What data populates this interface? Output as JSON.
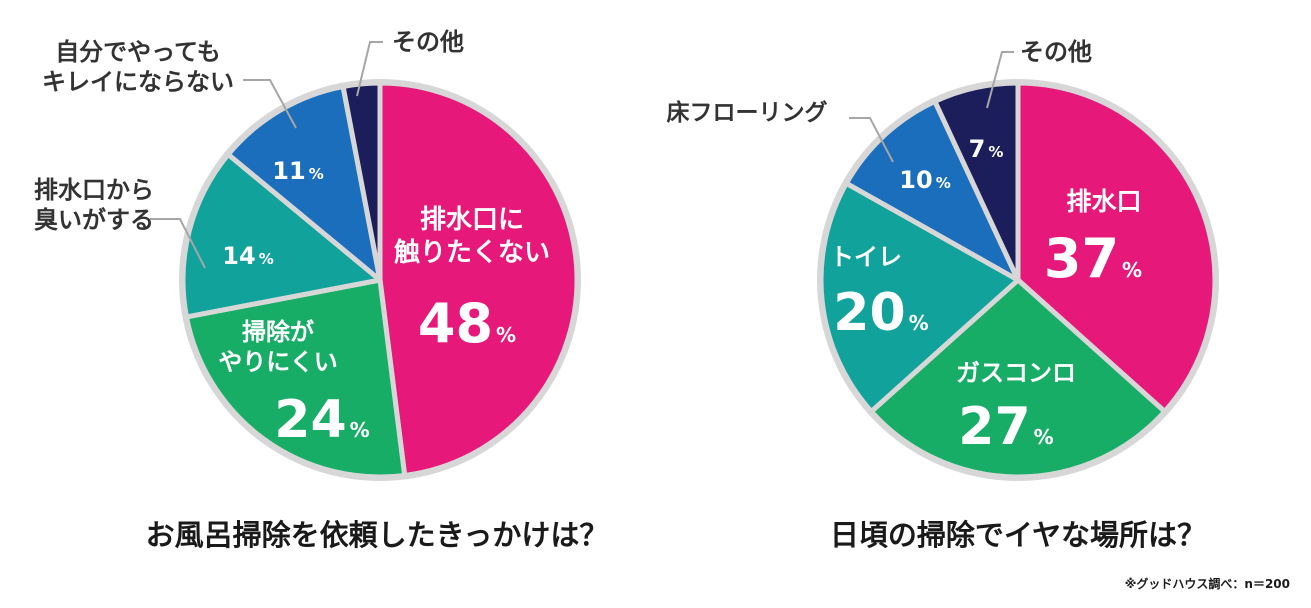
{
  "colors": {
    "magenta": "#e6197b",
    "green": "#17ad66",
    "teal": "#11a29c",
    "blue": "#1a6ebc",
    "navy": "#1c1e5c",
    "ring": "#d7d7d7",
    "leader": "#a6a6a6"
  },
  "chart_data": [
    {
      "type": "pie",
      "title": "お風呂掃除を依頼したきっかけは？",
      "unit": "%",
      "slices": [
        {
          "name": "排水口に触りたくない",
          "lines": [
            "排水口に",
            "触りたくない"
          ],
          "value": 48,
          "color": "#e6197b"
        },
        {
          "name": "掃除がやりにくい",
          "lines": [
            "掃除が",
            "やりにくい"
          ],
          "value": 24,
          "color": "#17ad66"
        },
        {
          "name": "排水口から臭いがする",
          "lines": [
            "排水口から",
            "臭いがする"
          ],
          "value": 14,
          "color": "#11a29c"
        },
        {
          "name": "自分でやってもキレイにならない",
          "lines": [
            "自分でやっても",
            "キレイにならない"
          ],
          "value": 11,
          "color": "#1a6ebc"
        },
        {
          "name": "その他",
          "lines": [
            "その他"
          ],
          "value": 3,
          "color": "#1c1e5c"
        }
      ]
    },
    {
      "type": "pie",
      "title": "日頃の掃除でイヤな場所は？",
      "unit": "%",
      "slices": [
        {
          "name": "排水口",
          "lines": [
            "排水口"
          ],
          "value": 37,
          "color": "#e6197b"
        },
        {
          "name": "ガスコンロ",
          "lines": [
            "ガスコンロ"
          ],
          "value": 27,
          "color": "#17ad66"
        },
        {
          "name": "トイレ",
          "lines": [
            "トイレ"
          ],
          "value": 20,
          "color": "#11a29c"
        },
        {
          "name": "床フローリング",
          "lines": [
            "床フローリング"
          ],
          "value": 10,
          "color": "#1a6ebc"
        },
        {
          "name": "その他",
          "lines": [
            "その他"
          ],
          "value": 7,
          "color": "#1c1e5c"
        }
      ]
    }
  ],
  "source_note": "※グッドハウス調べ：n＝200"
}
